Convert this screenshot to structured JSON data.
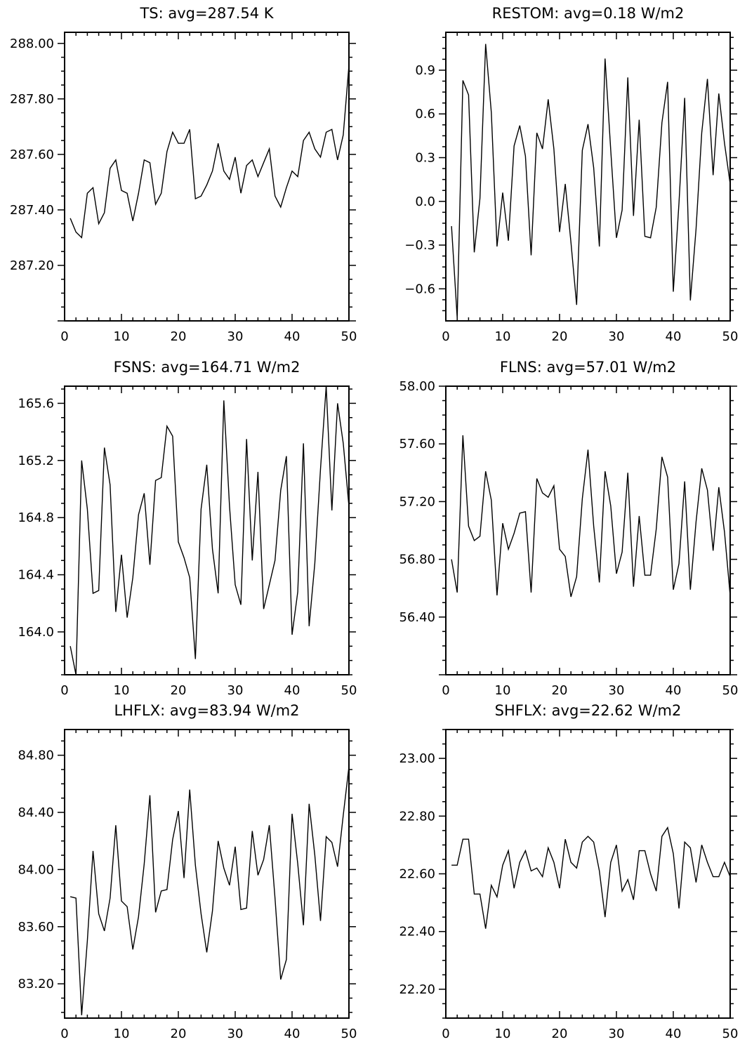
{
  "chart_data": [
    {
      "type": "line",
      "title": "TS: avg=287.54 K",
      "xlim": [
        0,
        50
      ],
      "ylim": [
        287.0,
        288.04
      ],
      "x_ticks": [
        "0",
        "10",
        "20",
        "30",
        "40",
        "50"
      ],
      "y_ticks": [
        "287.20",
        "287.40",
        "287.60",
        "287.80",
        "288.00"
      ],
      "grid": false,
      "series": [
        {
          "x": [
            1,
            2,
            3,
            4,
            5,
            6,
            7,
            8,
            9,
            10,
            11,
            12,
            13,
            14,
            15,
            16,
            17,
            18,
            19,
            20,
            21,
            22,
            23,
            24,
            25,
            26,
            27,
            28,
            29,
            30,
            31,
            32,
            33,
            34,
            35,
            36,
            37,
            38,
            39,
            40,
            41,
            42,
            43,
            44,
            45,
            46,
            47,
            48,
            49,
            50
          ],
          "values": [
            287.37,
            287.32,
            287.3,
            287.46,
            287.48,
            287.35,
            287.39,
            287.55,
            287.58,
            287.47,
            287.46,
            287.36,
            287.46,
            287.58,
            287.57,
            287.42,
            287.46,
            287.61,
            287.68,
            287.64,
            287.64,
            287.69,
            287.44,
            287.45,
            287.49,
            287.54,
            287.64,
            287.54,
            287.51,
            287.59,
            287.46,
            287.56,
            287.58,
            287.52,
            287.57,
            287.62,
            287.45,
            287.41,
            287.48,
            287.54,
            287.52,
            287.65,
            287.68,
            287.62,
            287.59,
            287.68,
            287.69,
            287.58,
            287.67,
            287.92
          ]
        }
      ]
    },
    {
      "type": "line",
      "title": "RESTOM: avg=0.18 W/m2",
      "xlim": [
        0,
        50
      ],
      "ylim": [
        -0.82,
        1.16
      ],
      "x_ticks": [
        "0",
        "10",
        "20",
        "30",
        "40",
        "50"
      ],
      "y_ticks": [
        "−0.6",
        "−0.3",
        "0.0",
        "0.3",
        "0.6",
        "0.9"
      ],
      "grid": false,
      "series": [
        {
          "x": [
            1,
            2,
            3,
            4,
            5,
            6,
            7,
            8,
            9,
            10,
            11,
            12,
            13,
            14,
            15,
            16,
            17,
            18,
            19,
            20,
            21,
            22,
            23,
            24,
            25,
            26,
            27,
            28,
            29,
            30,
            31,
            32,
            33,
            34,
            35,
            36,
            37,
            38,
            39,
            40,
            41,
            42,
            43,
            44,
            45,
            46,
            47,
            48,
            49,
            50
          ],
          "values": [
            -0.17,
            -0.8,
            0.83,
            0.73,
            -0.35,
            0.02,
            1.08,
            0.61,
            -0.31,
            0.06,
            -0.27,
            0.38,
            0.52,
            0.31,
            -0.37,
            0.47,
            0.36,
            0.7,
            0.36,
            -0.21,
            0.12,
            -0.28,
            -0.71,
            0.35,
            0.53,
            0.23,
            -0.31,
            0.98,
            0.35,
            -0.25,
            -0.06,
            0.85,
            -0.1,
            0.56,
            -0.24,
            -0.25,
            -0.04,
            0.54,
            0.82,
            -0.62,
            -0.01,
            0.71,
            -0.68,
            -0.19,
            0.47,
            0.84,
            0.18,
            0.74,
            0.4,
            0.12
          ]
        }
      ]
    },
    {
      "type": "line",
      "title": "FSNS: avg=164.71 W/m2",
      "xlim": [
        0,
        50
      ],
      "ylim": [
        163.7,
        165.72
      ],
      "x_ticks": [
        "0",
        "10",
        "20",
        "30",
        "40",
        "50"
      ],
      "y_ticks": [
        "164.0",
        "164.4",
        "164.8",
        "165.2",
        "165.6"
      ],
      "grid": false,
      "series": [
        {
          "x": [
            1,
            2,
            3,
            4,
            5,
            6,
            7,
            8,
            9,
            10,
            11,
            12,
            13,
            14,
            15,
            16,
            17,
            18,
            19,
            20,
            21,
            22,
            23,
            24,
            25,
            26,
            27,
            28,
            29,
            30,
            31,
            32,
            33,
            34,
            35,
            36,
            37,
            38,
            39,
            40,
            41,
            42,
            43,
            44,
            45,
            46,
            47,
            48,
            49,
            50
          ],
          "values": [
            163.9,
            163.7,
            165.2,
            164.86,
            164.27,
            164.29,
            165.29,
            165.03,
            164.14,
            164.54,
            164.1,
            164.38,
            164.82,
            164.97,
            164.47,
            165.06,
            165.08,
            165.44,
            165.37,
            164.63,
            164.52,
            164.38,
            163.81,
            164.86,
            165.17,
            164.58,
            164.27,
            165.62,
            164.88,
            164.33,
            164.19,
            165.35,
            164.5,
            165.12,
            164.16,
            164.33,
            164.5,
            164.99,
            165.23,
            163.98,
            164.28,
            165.32,
            164.04,
            164.48,
            165.14,
            165.72,
            164.85,
            165.6,
            165.32,
            164.88
          ]
        }
      ]
    },
    {
      "type": "line",
      "title": "FLNS: avg=57.01 W/m2",
      "xlim": [
        0,
        50
      ],
      "ylim": [
        56.0,
        58.0
      ],
      "x_ticks": [
        "0",
        "10",
        "20",
        "30",
        "40",
        "50"
      ],
      "y_ticks": [
        "56.40",
        "56.80",
        "57.20",
        "57.60",
        "58.00"
      ],
      "grid": false,
      "series": [
        {
          "x": [
            1,
            2,
            3,
            4,
            5,
            6,
            7,
            8,
            9,
            10,
            11,
            12,
            13,
            14,
            15,
            16,
            17,
            18,
            19,
            20,
            21,
            22,
            23,
            24,
            25,
            26,
            27,
            28,
            29,
            30,
            31,
            32,
            33,
            34,
            35,
            36,
            37,
            38,
            39,
            40,
            41,
            42,
            43,
            44,
            45,
            46,
            47,
            48,
            49,
            50
          ],
          "values": [
            56.8,
            56.57,
            57.66,
            57.03,
            56.93,
            56.96,
            57.41,
            57.21,
            56.55,
            57.05,
            56.87,
            56.98,
            57.12,
            57.13,
            56.57,
            57.36,
            57.26,
            57.23,
            57.31,
            56.87,
            56.82,
            56.54,
            56.68,
            57.22,
            57.56,
            57.03,
            56.64,
            57.41,
            57.17,
            56.7,
            56.85,
            57.4,
            56.61,
            57.1,
            56.69,
            56.69,
            57.01,
            57.51,
            57.37,
            56.59,
            56.77,
            57.34,
            56.59,
            57.06,
            57.43,
            57.28,
            56.86,
            57.3,
            56.99,
            56.55
          ]
        }
      ]
    },
    {
      "type": "line",
      "title": "LHFLX: avg=83.94 W/m2",
      "xlim": [
        0,
        50
      ],
      "ylim": [
        82.96,
        84.98
      ],
      "x_ticks": [
        "0",
        "10",
        "20",
        "30",
        "40",
        "50"
      ],
      "y_ticks": [
        "83.20",
        "83.60",
        "84.00",
        "84.40",
        "84.80"
      ],
      "grid": false,
      "series": [
        {
          "x": [
            1,
            2,
            3,
            4,
            5,
            6,
            7,
            8,
            9,
            10,
            11,
            12,
            13,
            14,
            15,
            16,
            17,
            18,
            19,
            20,
            21,
            22,
            23,
            24,
            25,
            26,
            27,
            28,
            29,
            30,
            31,
            32,
            33,
            34,
            35,
            36,
            37,
            38,
            39,
            40,
            41,
            42,
            43,
            44,
            45,
            46,
            47,
            48,
            49,
            50
          ],
          "values": [
            83.81,
            83.8,
            82.98,
            83.5,
            84.13,
            83.69,
            83.57,
            83.8,
            84.31,
            83.78,
            83.74,
            83.44,
            83.67,
            84.04,
            84.52,
            83.7,
            83.85,
            83.86,
            84.21,
            84.41,
            83.94,
            84.56,
            84.03,
            83.69,
            83.42,
            83.71,
            84.2,
            84.01,
            83.89,
            84.16,
            83.72,
            83.73,
            84.27,
            83.96,
            84.07,
            84.31,
            83.8,
            83.23,
            83.37,
            84.39,
            84.04,
            83.61,
            84.46,
            84.1,
            83.64,
            84.23,
            84.19,
            84.02,
            84.38,
            84.72
          ]
        }
      ]
    },
    {
      "type": "line",
      "title": "SHFLX: avg=22.62 W/m2",
      "xlim": [
        0,
        50
      ],
      "ylim": [
        22.1,
        23.1
      ],
      "x_ticks": [
        "0",
        "10",
        "20",
        "30",
        "40",
        "50"
      ],
      "y_ticks": [
        "22.20",
        "22.40",
        "22.60",
        "22.80",
        "23.00"
      ],
      "grid": false,
      "series": [
        {
          "x": [
            1,
            2,
            3,
            4,
            5,
            6,
            7,
            8,
            9,
            10,
            11,
            12,
            13,
            14,
            15,
            16,
            17,
            18,
            19,
            20,
            21,
            22,
            23,
            24,
            25,
            26,
            27,
            28,
            29,
            30,
            31,
            32,
            33,
            34,
            35,
            36,
            37,
            38,
            39,
            40,
            41,
            42,
            43,
            44,
            45,
            46,
            47,
            48,
            49,
            50
          ],
          "values": [
            22.63,
            22.63,
            22.72,
            22.72,
            22.53,
            22.53,
            22.41,
            22.56,
            22.52,
            22.63,
            22.68,
            22.55,
            22.64,
            22.68,
            22.61,
            22.62,
            22.59,
            22.69,
            22.64,
            22.55,
            22.72,
            22.64,
            22.62,
            22.71,
            22.73,
            22.71,
            22.61,
            22.45,
            22.64,
            22.7,
            22.54,
            22.58,
            22.51,
            22.68,
            22.68,
            22.6,
            22.54,
            22.73,
            22.76,
            22.67,
            22.48,
            22.71,
            22.69,
            22.57,
            22.7,
            22.64,
            22.59,
            22.59,
            22.64,
            22.59
          ]
        }
      ]
    }
  ]
}
